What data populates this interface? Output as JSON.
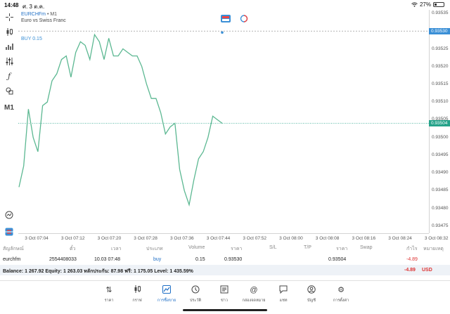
{
  "status": {
    "time": "14:48",
    "date": "ศ. 3 ต.ค.",
    "battery": "27%",
    "battery_level": 0.27
  },
  "toolbar": {
    "timeframe_label": "M1"
  },
  "chart_header": {
    "symbol": "EURCHFm",
    "timeframe": "• M1",
    "description": "Euro vs Swiss Franc",
    "buy_label": "BUY 0.15"
  },
  "chart_data": {
    "type": "line",
    "title": "",
    "xlabel": "",
    "ylabel": "",
    "x_ticks": [
      "3 Oct 07:04",
      "3 Oct 07:12",
      "3 Oct 07:20",
      "3 Oct 07:28",
      "3 Oct 07:36",
      "3 Oct 07:44",
      "3 Oct 07:52",
      "3 Oct 08:00",
      "3 Oct 08:08",
      "3 Oct 08:16",
      "3 Oct 08:24",
      "3 Oct 08:32"
    ],
    "y_ticks": [
      "0.93535",
      "0.93525",
      "0.93520",
      "0.93515",
      "0.93510",
      "0.93505",
      "0.93500",
      "0.93495",
      "0.93490",
      "0.93485",
      "0.93480",
      "0.93475"
    ],
    "ylim": [
      0.93473,
      0.93536
    ],
    "series": [
      {
        "values": [
          0.93486,
          0.93492,
          0.93508,
          0.935,
          0.93496,
          0.93509,
          0.9351,
          0.93516,
          0.93518,
          0.93522,
          0.93523,
          0.93517,
          0.93524,
          0.93527,
          0.93526,
          0.93522,
          0.93529,
          0.93527,
          0.93522,
          0.93528,
          0.93523,
          0.93523,
          0.93525,
          0.93524,
          0.93523,
          0.93523,
          0.9352,
          0.93515,
          0.93511,
          0.93511,
          0.93507,
          0.93501,
          0.93503,
          0.93504,
          0.93491,
          0.93485,
          0.93481,
          0.93488,
          0.93494,
          0.93496,
          0.935,
          0.93506,
          0.93505,
          0.93504
        ]
      }
    ],
    "buy_level": 0.9353,
    "current_price": 0.93504,
    "buy_price_tag": "0.93530",
    "current_price_tag": "0.93504",
    "grid": false
  },
  "table": {
    "headers": [
      "สัญลักษณ์",
      "ตั๋ว",
      "เวลา",
      "ประเภท",
      "Volume",
      "ราคา",
      "S/L",
      "T/P",
      "ราคา",
      "Swap",
      "กำไร",
      "หมายเหตุ"
    ],
    "row": {
      "symbol": "eurchfm",
      "ticket": "2554408033",
      "time": "10.03 07:48",
      "type": "buy",
      "volume": "0.15",
      "open_price": "0.93530",
      "sl": "",
      "tp": "",
      "price": "0.93504",
      "swap": "",
      "profit": "-4.89",
      "comment": ""
    }
  },
  "balance": {
    "text": "Balance: 1 267.92 Equity: 1 263.03 หลักประกัน: 87.98 ฟรี: 1 175.05 Level: 1 435.59%",
    "profit": "-4.89",
    "currency": "USD"
  },
  "nav": [
    {
      "label": "ราคา",
      "icon": "quotes-icon"
    },
    {
      "label": "กราฟ",
      "icon": "chart-icon"
    },
    {
      "label": "การซื้อขาย",
      "icon": "trade-icon"
    },
    {
      "label": "ประวัติ",
      "icon": "history-icon"
    },
    {
      "label": "ข่าว",
      "icon": "news-icon"
    },
    {
      "label": "กล่องจดหมาย",
      "icon": "mailbox-icon"
    },
    {
      "label": "แชท",
      "icon": "chat-icon"
    },
    {
      "label": "บัญชี",
      "icon": "account-icon"
    },
    {
      "label": "การตั้งค่า",
      "icon": "settings-icon"
    }
  ],
  "colors": {
    "line": "#5cb892",
    "buy": "#3a8fd6",
    "current": "#26a38a",
    "accent": "#1f6fc6",
    "loss": "#d33333"
  }
}
